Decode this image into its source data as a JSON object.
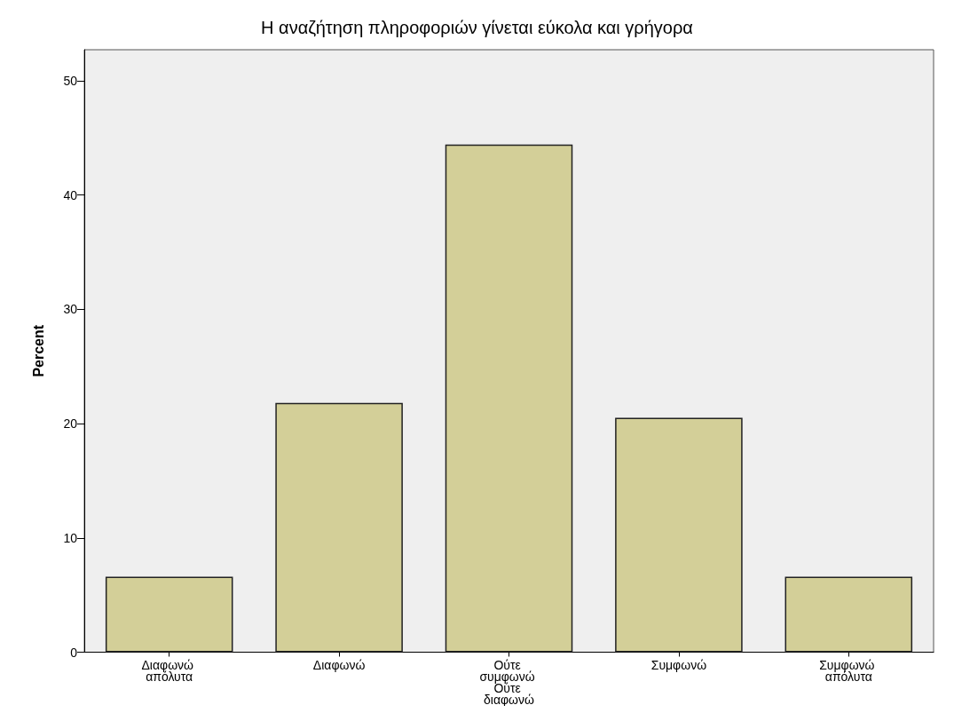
{
  "chart_data": {
    "type": "bar",
    "title": "Η αναζήτηση πληροφοριών γίνεται εύκολα και γρήγορα",
    "ylabel": "Percent",
    "categories": [
      "Διαφωνώ απόλυτα",
      "Διαφωνώ",
      "Ούτε συμφωνώ Ούτε διαφωνώ",
      "Συμφωνώ",
      "Συμφωνώ απόλυτα"
    ],
    "values": [
      6.6,
      21.8,
      44.4,
      20.5,
      6.6
    ],
    "color": "#d3cf98",
    "ylim": [
      0,
      52.7
    ],
    "yticks": [
      0,
      10,
      20,
      30,
      40,
      50
    ],
    "grid": false
  }
}
